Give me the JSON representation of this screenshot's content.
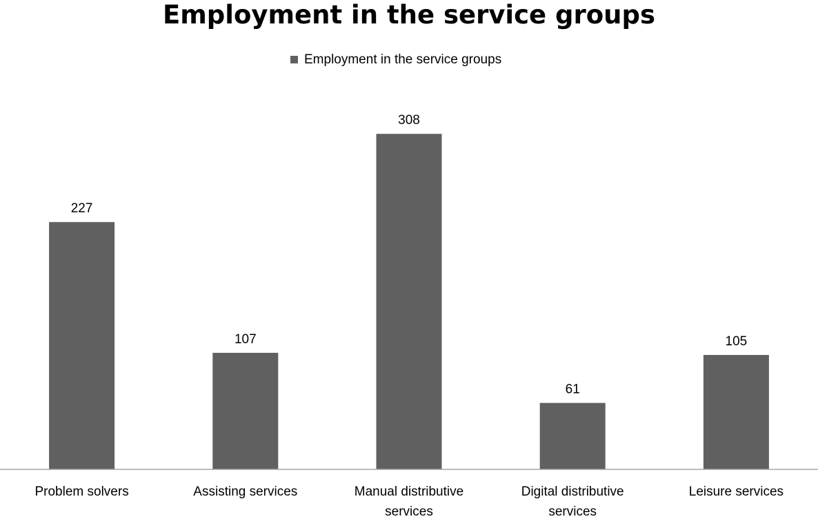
{
  "chart_data": {
    "type": "bar",
    "title": "Employment in the service groups",
    "xlabel": "",
    "ylabel": "",
    "legend": "top",
    "grid": false,
    "ylim": [
      0,
      320
    ],
    "categories": [
      [
        "Problem solvers"
      ],
      [
        "Assisting services"
      ],
      [
        "Manual distributive",
        "services"
      ],
      [
        "Digital distributive",
        "services"
      ],
      [
        "Leisure services"
      ]
    ],
    "series": [
      {
        "name": "Employment in the service groups",
        "color": "#606060",
        "values": [
          227,
          107,
          308,
          61,
          105
        ]
      }
    ]
  }
}
